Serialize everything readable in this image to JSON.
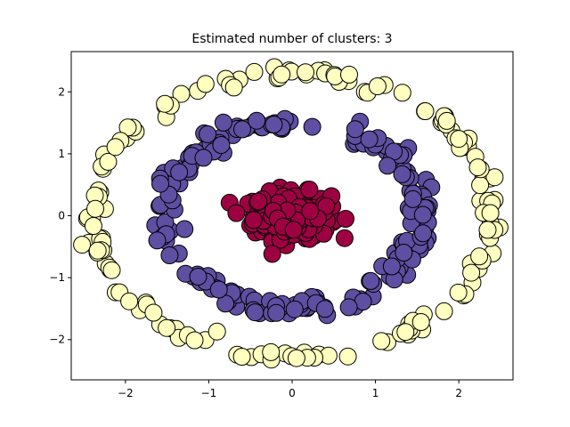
{
  "chart_data": {
    "type": "scatter",
    "title": "Estimated number of clusters: 3",
    "xlabel": "",
    "ylabel": "",
    "xlim": [
      -2.65,
      2.65
    ],
    "ylim": [
      -2.65,
      2.65
    ],
    "xticks": [
      -2,
      -1,
      0,
      1,
      2
    ],
    "yticks": [
      -2,
      -1,
      0,
      1,
      2
    ],
    "xtick_labels": [
      "−2",
      "−1",
      "0",
      "1",
      "2"
    ],
    "ytick_labels": [
      "−2",
      "−1",
      "0",
      "1",
      "2"
    ],
    "grid": false,
    "legend": "none",
    "marker_edge_color": "#000000",
    "series": [
      {
        "color": "#9e0142",
        "shape": "dense-center",
        "center": [
          0,
          0
        ],
        "spread": [
          0.42,
          0.33
        ],
        "count": 280
      },
      {
        "color": "#5e4fa2",
        "shape": "ring",
        "center": [
          0,
          0
        ],
        "radius": [
          1.55,
          1.5
        ],
        "jitter": 0.08,
        "count": 200
      },
      {
        "color": "#ffffbf",
        "shape": "ring",
        "center": [
          0,
          0
        ],
        "radius": [
          2.4,
          2.3
        ],
        "jitter": 0.06,
        "count": 160
      }
    ]
  }
}
